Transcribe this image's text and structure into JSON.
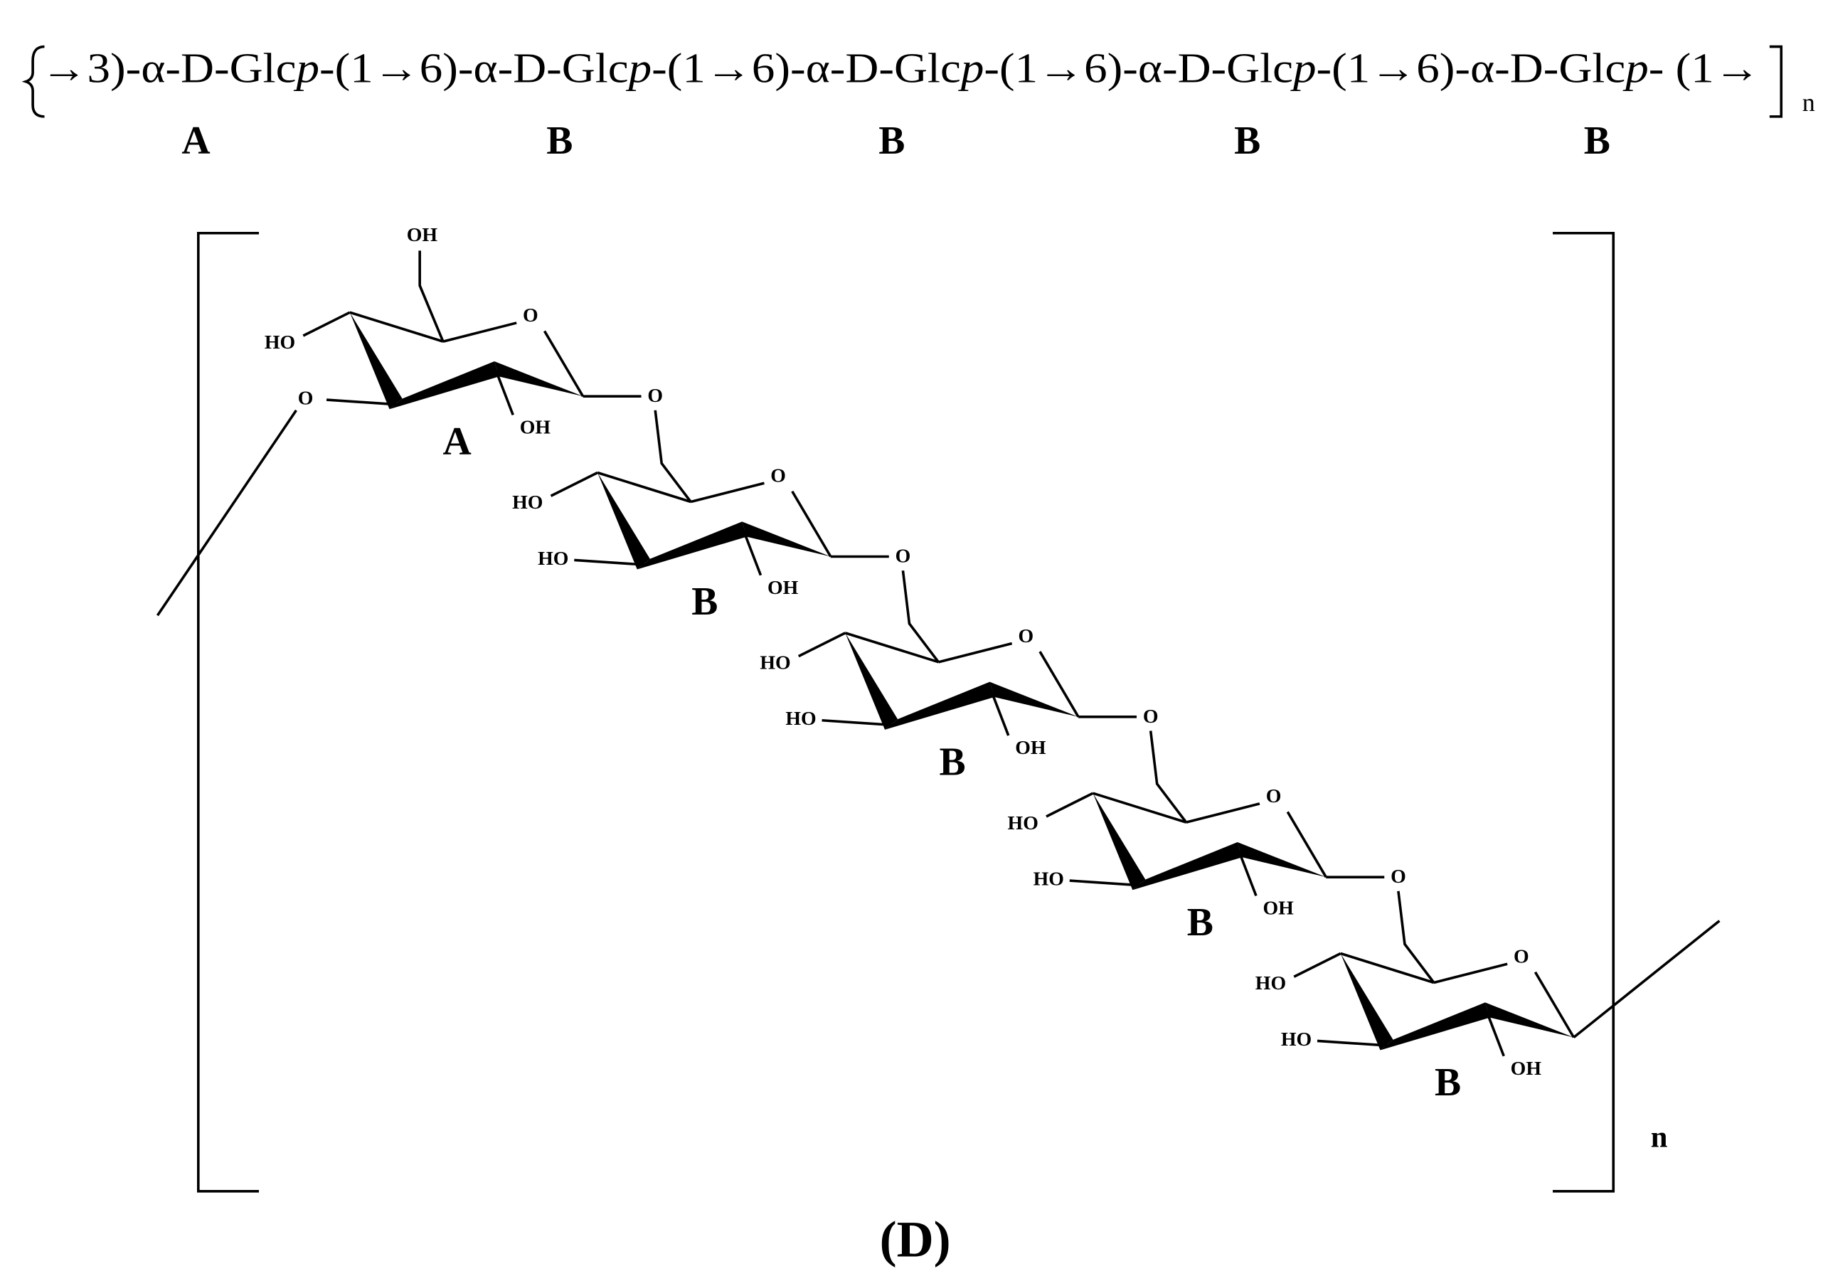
{
  "formula": {
    "parts": [
      "→3)-α-D-Glc",
      "p",
      "-(1→6)-α-D-Glc",
      "p",
      "-(1→6)-α-D-Glc",
      "p",
      "-(1→6)-α-D-Glc",
      "p",
      "-(1→6)-α-D-Glc",
      "p",
      "- (1→"
    ],
    "repeat": "n",
    "residue_labels": [
      "A",
      "B",
      "B",
      "B",
      "B"
    ]
  },
  "structure": {
    "rings": [
      {
        "label": "A",
        "c6": "OH",
        "c4": "HO",
        "ring_o": "O",
        "c3": "O",
        "c2": "OH",
        "c1": "O"
      },
      {
        "label": "B",
        "c4": "HO",
        "ring_o": "O",
        "c3": "HO",
        "c2": "OH",
        "c1": "O"
      },
      {
        "label": "B",
        "c4": "HO",
        "ring_o": "O",
        "c3": "HO",
        "c2": "OH",
        "c1": "O"
      },
      {
        "label": "B",
        "c4": "HO",
        "ring_o": "O",
        "c3": "HO",
        "c2": "OH",
        "c1": "O"
      },
      {
        "label": "B",
        "c4": "HO",
        "ring_o": "O",
        "c3": "HO",
        "c2": "OH"
      }
    ],
    "repeat": "n"
  },
  "caption": "(D)"
}
